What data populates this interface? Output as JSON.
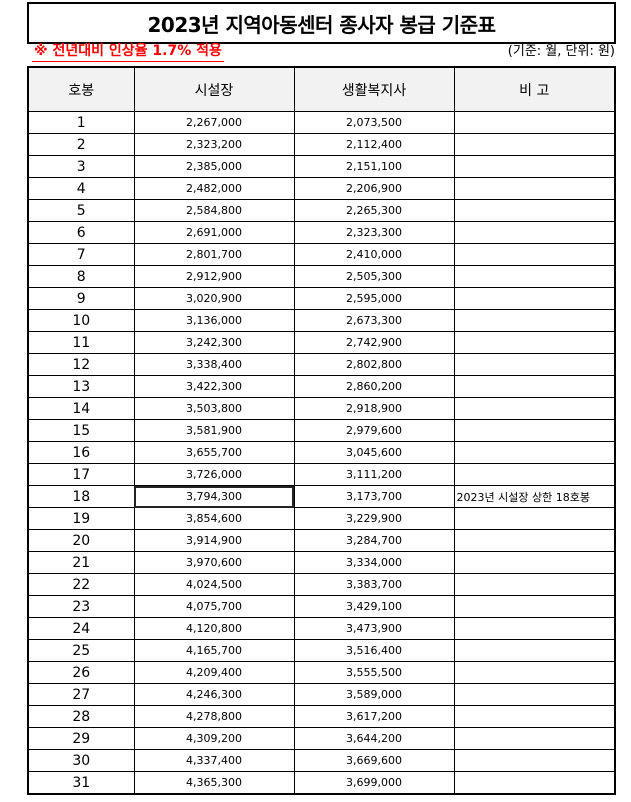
{
  "title": "2023년 지역아동센터 종사자 봉급 기준표",
  "note": "※ 전년대비 인상율 1.7% 적용",
  "unit_text": "(기준: 월, 단위: 원)",
  "colors": {
    "note": "#ff0000",
    "header_bg": "#f2f2f2"
  },
  "table": {
    "headers": [
      "호봉",
      "시설장",
      "생활복지사",
      "비 고"
    ],
    "selected_cell": {
      "row": 18,
      "column": "시설장"
    },
    "rows": [
      {
        "step": "1",
        "director": "2,267,000",
        "worker": "2,073,500",
        "remark": ""
      },
      {
        "step": "2",
        "director": "2,323,200",
        "worker": "2,112,400",
        "remark": ""
      },
      {
        "step": "3",
        "director": "2,385,000",
        "worker": "2,151,100",
        "remark": ""
      },
      {
        "step": "4",
        "director": "2,482,000",
        "worker": "2,206,900",
        "remark": ""
      },
      {
        "step": "5",
        "director": "2,584,800",
        "worker": "2,265,300",
        "remark": ""
      },
      {
        "step": "6",
        "director": "2,691,000",
        "worker": "2,323,300",
        "remark": ""
      },
      {
        "step": "7",
        "director": "2,801,700",
        "worker": "2,410,000",
        "remark": ""
      },
      {
        "step": "8",
        "director": "2,912,900",
        "worker": "2,505,300",
        "remark": ""
      },
      {
        "step": "9",
        "director": "3,020,900",
        "worker": "2,595,000",
        "remark": ""
      },
      {
        "step": "10",
        "director": "3,136,000",
        "worker": "2,673,300",
        "remark": ""
      },
      {
        "step": "11",
        "director": "3,242,300",
        "worker": "2,742,900",
        "remark": ""
      },
      {
        "step": "12",
        "director": "3,338,400",
        "worker": "2,802,800",
        "remark": ""
      },
      {
        "step": "13",
        "director": "3,422,300",
        "worker": "2,860,200",
        "remark": ""
      },
      {
        "step": "14",
        "director": "3,503,800",
        "worker": "2,918,900",
        "remark": ""
      },
      {
        "step": "15",
        "director": "3,581,900",
        "worker": "2,979,600",
        "remark": ""
      },
      {
        "step": "16",
        "director": "3,655,700",
        "worker": "3,045,600",
        "remark": ""
      },
      {
        "step": "17",
        "director": "3,726,000",
        "worker": "3,111,200",
        "remark": ""
      },
      {
        "step": "18",
        "director": "3,794,300",
        "worker": "3,173,700",
        "remark": "2023년 시설장 상한 18호봉"
      },
      {
        "step": "19",
        "director": "3,854,600",
        "worker": "3,229,900",
        "remark": ""
      },
      {
        "step": "20",
        "director": "3,914,900",
        "worker": "3,284,700",
        "remark": ""
      },
      {
        "step": "21",
        "director": "3,970,600",
        "worker": "3,334,000",
        "remark": ""
      },
      {
        "step": "22",
        "director": "4,024,500",
        "worker": "3,383,700",
        "remark": ""
      },
      {
        "step": "23",
        "director": "4,075,700",
        "worker": "3,429,100",
        "remark": ""
      },
      {
        "step": "24",
        "director": "4,120,800",
        "worker": "3,473,900",
        "remark": ""
      },
      {
        "step": "25",
        "director": "4,165,700",
        "worker": "3,516,400",
        "remark": ""
      },
      {
        "step": "26",
        "director": "4,209,400",
        "worker": "3,555,500",
        "remark": ""
      },
      {
        "step": "27",
        "director": "4,246,300",
        "worker": "3,589,000",
        "remark": ""
      },
      {
        "step": "28",
        "director": "4,278,800",
        "worker": "3,617,200",
        "remark": ""
      },
      {
        "step": "29",
        "director": "4,309,200",
        "worker": "3,644,200",
        "remark": ""
      },
      {
        "step": "30",
        "director": "4,337,400",
        "worker": "3,669,600",
        "remark": ""
      },
      {
        "step": "31",
        "director": "4,365,300",
        "worker": "3,699,000",
        "remark": ""
      }
    ]
  }
}
